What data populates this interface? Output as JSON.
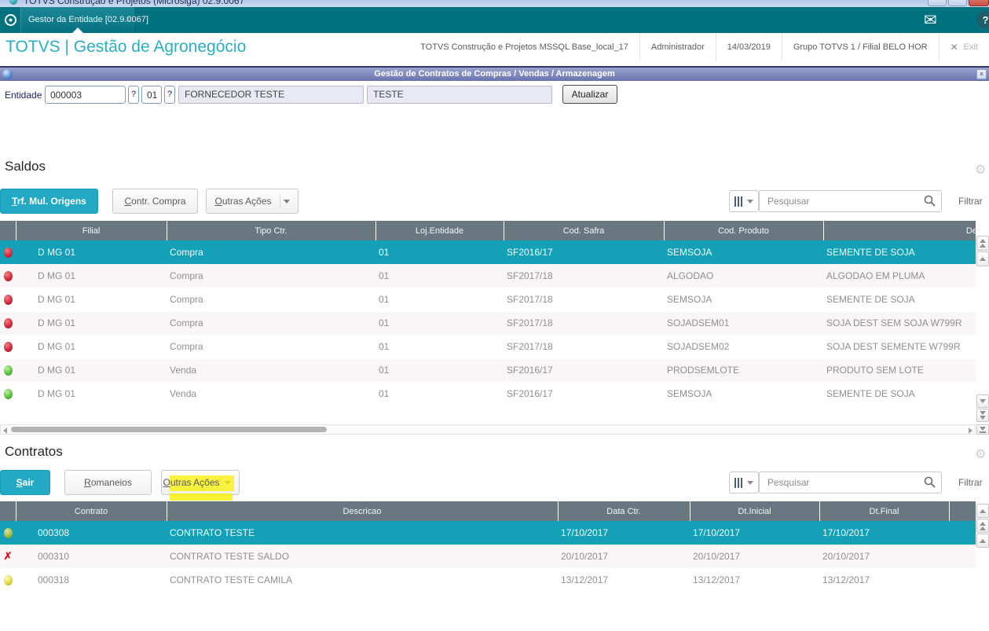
{
  "window": {
    "title": "TOTVS Construção e Projetos (Microsiga) 02.9.0067"
  },
  "tab_bar": {
    "tab_label": "Gestor da Entidade [02.9.0067]"
  },
  "header": {
    "brand": "TOTVS | Gestão de Agronegócio",
    "environment": "TOTVS Construção e Projetos MSSQL Base_local_17",
    "user": "Administrador",
    "date": "14/03/2019",
    "group": "Grupo TOTVS 1 / Filial BELO HOR",
    "exit_label": "Exit"
  },
  "dialog": {
    "title": "Gestão de Contratos de Compras / Vendas / Armazenagem"
  },
  "entity": {
    "label": "Entidade",
    "code": "000003",
    "lookup1": "?",
    "store": "01",
    "lookup2": "?",
    "name": "FORNECEDOR TESTE",
    "short_name": "TESTE",
    "refresh_button": "Atualizar"
  },
  "saldos": {
    "title": "Saldos",
    "btn_primary": "Trf. Mul. Origens",
    "btn_secondary": "Contr. Compra",
    "btn_dropdown": "Outras Ações",
    "search_placeholder": "Pesquisar",
    "filter_label": "Filtrar",
    "columns": [
      "",
      "Filial",
      "Tipo Ctr.",
      "Loj.Entidade",
      "Cod. Safra",
      "Cod. Produto",
      "Des. Pr"
    ],
    "rows": [
      {
        "status": "red",
        "selected": true,
        "cells": [
          "D MG 01",
          "Compra",
          "01",
          "SF2016/17",
          "SEMSOJA",
          "SEMENTE DE SOJA"
        ]
      },
      {
        "status": "red",
        "selected": false,
        "cells": [
          "D MG 01",
          "Compra",
          "01",
          "SF2017/18",
          "ALGODAO",
          "ALGODAO EM PLUMA"
        ]
      },
      {
        "status": "red",
        "selected": false,
        "cells": [
          "D MG 01",
          "Compra",
          "01",
          "SF2017/18",
          "SEMSOJA",
          "SEMENTE DE SOJA"
        ]
      },
      {
        "status": "red",
        "selected": false,
        "cells": [
          "D MG 01",
          "Compra",
          "01",
          "SF2017/18",
          "SOJADSEM01",
          "SOJA DEST SEM SOJA W799R"
        ]
      },
      {
        "status": "red",
        "selected": false,
        "cells": [
          "D MG 01",
          "Compra",
          "01",
          "SF2017/18",
          "SOJADSEM02",
          "SOJA DEST SEMENTE W799R"
        ]
      },
      {
        "status": "green",
        "selected": false,
        "cells": [
          "D MG 01",
          "Venda",
          "01",
          "SF2016/17",
          "PRODSEMLOTE",
          "PRODUTO SEM LOTE"
        ]
      },
      {
        "status": "green",
        "selected": false,
        "cells": [
          "D MG 01",
          "Venda",
          "01",
          "SF2016/17",
          "SEMSOJA",
          "SEMENTE DE SOJA"
        ]
      }
    ]
  },
  "contratos": {
    "title": "Contratos",
    "btn_primary": "Sair",
    "btn_secondary": "Romaneios",
    "btn_dropdown": "Outras Ações",
    "search_placeholder": "Pesquisar",
    "filter_label": "Filtrar",
    "columns": [
      "",
      "Contrato",
      "Descricao",
      "Data Ctr.",
      "Dt.Inicial",
      "Dt.Final",
      ""
    ],
    "rows": [
      {
        "status": "olive",
        "selected": true,
        "cells": [
          "000308",
          "CONTRATO TESTE",
          "17/10/2017",
          "17/10/2017",
          "17/10/2017",
          ""
        ]
      },
      {
        "status": "red-x",
        "selected": false,
        "cells": [
          "000310",
          "CONTRATO TESTE SALDO",
          "20/10/2017",
          "20/10/2017",
          "20/10/2017",
          ""
        ]
      },
      {
        "status": "yellow",
        "selected": false,
        "cells": [
          "000318",
          "CONTRATO TESTE CAMILA",
          "13/12/2017",
          "13/12/2017",
          "13/12/2017",
          ""
        ]
      }
    ]
  },
  "icons": {
    "gear": "⚙",
    "envelope": "✉",
    "help": "?",
    "tab_close": "×",
    "exit_x": "✕",
    "dialog_close": "×",
    "red_x": "✗"
  },
  "colors": {
    "accent_teal": "#00727f",
    "brand_cyan": "#29aec2",
    "selected_row": "#14a0b6",
    "grid_header": "#697880",
    "caption_blue": "#6974ae",
    "highlight_yellow": "#faf000",
    "primary_button": "#23a9c4"
  }
}
